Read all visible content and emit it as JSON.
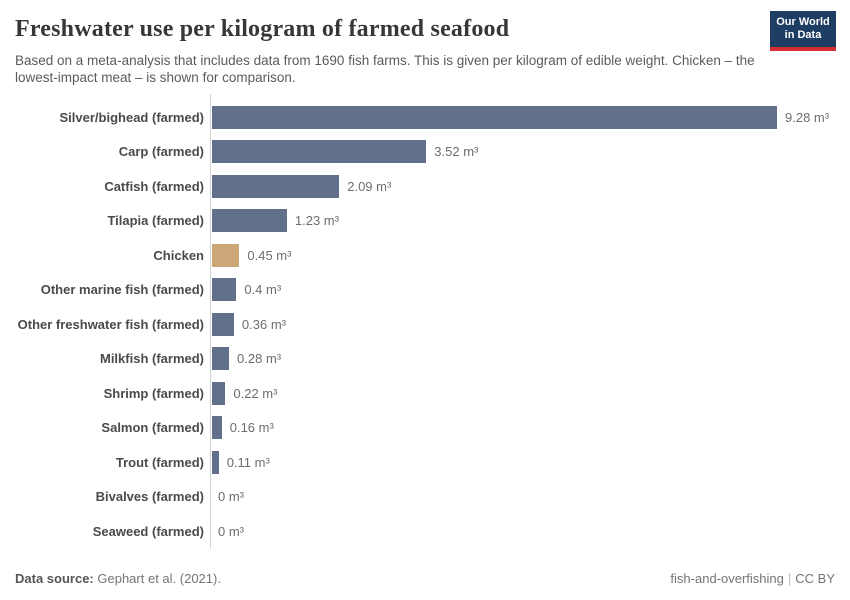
{
  "header": {
    "title": "Freshwater use per kilogram of farmed seafood",
    "subtitle": "Based on a meta-analysis that includes data from 1690 fish farms. This is given per kilogram of edible weight. Chicken – the lowest-impact meat – is shown for comparison.",
    "logo": {
      "line1": "Our World",
      "line2": "in Data",
      "bg_color": "#1d3d63",
      "accent_color": "#d42e32"
    }
  },
  "chart_data": {
    "type": "bar",
    "orientation": "horizontal",
    "title": "Freshwater use per kilogram of farmed seafood",
    "xlabel": "",
    "ylabel": "",
    "unit": "m³",
    "xlim": [
      0,
      9.28
    ],
    "grid": false,
    "categories": [
      "Silver/bighead (farmed)",
      "Carp (farmed)",
      "Catfish (farmed)",
      "Tilapia (farmed)",
      "Chicken",
      "Other marine fish (farmed)",
      "Other freshwater fish (farmed)",
      "Milkfish (farmed)",
      "Shrimp (farmed)",
      "Salmon (farmed)",
      "Trout (farmed)",
      "Bivalves (farmed)",
      "Seaweed (farmed)"
    ],
    "values": [
      9.28,
      3.52,
      2.09,
      1.23,
      0.45,
      0.4,
      0.36,
      0.28,
      0.22,
      0.16,
      0.11,
      0,
      0
    ],
    "value_labels": [
      "9.28 m³",
      "3.52 m³",
      "2.09 m³",
      "1.23 m³",
      "0.45 m³",
      "0.4 m³",
      "0.36 m³",
      "0.28 m³",
      "0.22 m³",
      "0.16 m³",
      "0.11 m³",
      "0 m³",
      "0 m³"
    ],
    "bar_color": "#62708c",
    "highlight_color": "#cba676",
    "highlight_index": 4
  },
  "footer": {
    "datasource_label": "Data source:",
    "datasource_value": "Gephart et al. (2021).",
    "credit_name": "fish-and-overfishing",
    "credit_sep": "|",
    "credit_license": "CC BY"
  }
}
